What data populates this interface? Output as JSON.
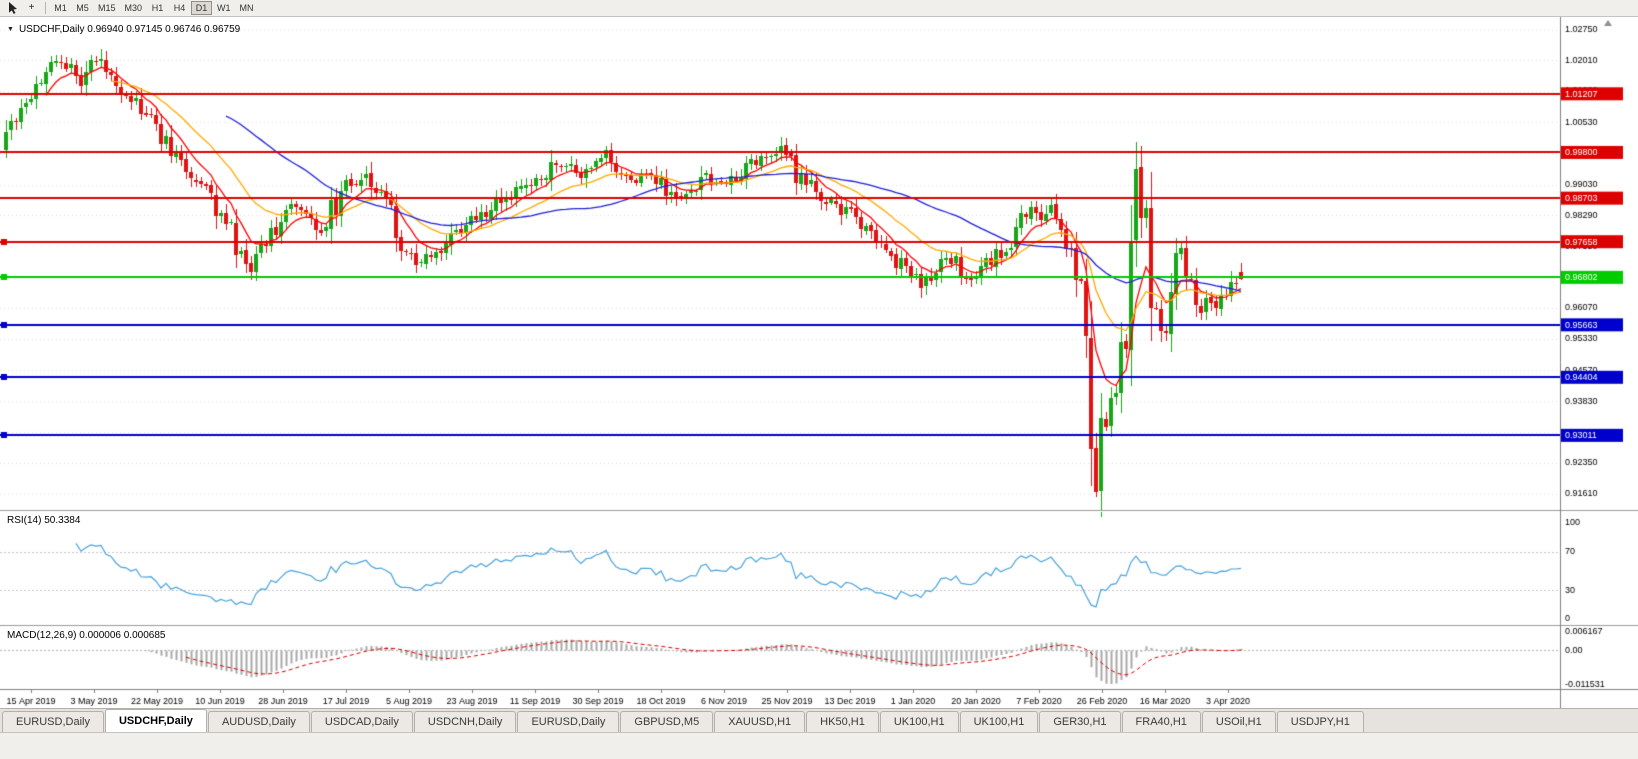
{
  "toolbar": {
    "icons": [
      {
        "name": "cursor-icon"
      },
      {
        "name": "crosshair-icon",
        "glyph": "+"
      }
    ],
    "timeframes": [
      "M1",
      "M5",
      "M15",
      "M30",
      "H1",
      "H4",
      "D1",
      "W1",
      "MN"
    ],
    "active_timeframe": "D1"
  },
  "chart": {
    "title": "USDCHF,Daily 0.96940 0.97145 0.96746 0.96759",
    "symbol": "USDCHF,Daily",
    "ohlc": {
      "open": "0.96940",
      "high": "0.97145",
      "low": "0.96746",
      "close": "0.96759"
    }
  },
  "chart_data": {
    "type": "candlestick",
    "symbol": "USDCHF",
    "period": "Daily",
    "price_range": {
      "top": 1.0305,
      "bottom": 0.9122
    },
    "y_axis_ticks": [
      "1.02750",
      "1.02010",
      "1.01280",
      "1.00530",
      "0.99780",
      "0.99030",
      "0.98290",
      "0.97550",
      "0.96810",
      "0.96070",
      "0.95330",
      "0.94570",
      "0.93830",
      "0.93090",
      "0.92350",
      "0.91610"
    ],
    "x_labels": [
      "15 Apr 2019",
      "3 May 2019",
      "22 May 2019",
      "10 Jun 2019",
      "28 Jun 2019",
      "17 Jul 2019",
      "5 Aug 2019",
      "23 Aug 2019",
      "11 Sep 2019",
      "30 Sep 2019",
      "18 Oct 2019",
      "6 Nov 2019",
      "25 Nov 2019",
      "13 Dec 2019",
      "1 Jan 2020",
      "20 Jan 2020",
      "7 Feb 2020",
      "26 Feb 2020",
      "16 Mar 2020",
      "3 Apr 2020"
    ],
    "price_lines": [
      {
        "label": "1.01207",
        "value": 1.01207,
        "color": "#dd0000",
        "handle": false
      },
      {
        "label": "0.99800",
        "value": 0.998,
        "color": "#dd0000",
        "handle": false
      },
      {
        "label": "0.98703",
        "value": 0.98703,
        "color": "#dd0000",
        "handle": false
      },
      {
        "label": "0.97658",
        "value": 0.97658,
        "color": "#dd0000",
        "handle": true
      },
      {
        "label": "0.96802",
        "value": 0.96802,
        "color": "#00cc00",
        "handle": true
      },
      {
        "label": "0.95663",
        "value": 0.95663,
        "color": "#0000cc",
        "handle": true
      },
      {
        "label": "0.94404",
        "value": 0.94404,
        "color": "#0000cc",
        "handle": true
      },
      {
        "label": "0.93011",
        "value": 0.93011,
        "color": "#0000cc",
        "handle": true
      }
    ],
    "candle_count": 248,
    "last_candle": {
      "o": 0.9694,
      "h": 0.97145,
      "l": 0.96746,
      "c": 0.96759
    },
    "extremes": {
      "high": 1.0228,
      "low": 0.9152,
      "rebound_high": 0.9932
    },
    "price_anchors": [
      [
        0,
        1.003
      ],
      [
        3,
        1.009
      ],
      [
        6,
        1.015
      ],
      [
        9,
        1.0208
      ],
      [
        12,
        1.0185
      ],
      [
        15,
        1.015
      ],
      [
        17,
        1.0205
      ],
      [
        20,
        1.018
      ],
      [
        23,
        1.014
      ],
      [
        26,
        1.0095
      ],
      [
        30,
        1.004
      ],
      [
        33,
        0.9985
      ],
      [
        36,
        0.994
      ],
      [
        39,
        0.99
      ],
      [
        42,
        0.9855
      ],
      [
        45,
        0.978
      ],
      [
        47,
        0.9715
      ],
      [
        49,
        0.97
      ],
      [
        51,
        0.9755
      ],
      [
        54,
        0.981
      ],
      [
        57,
        0.985
      ],
      [
        60,
        0.982
      ],
      [
        63,
        0.9795
      ],
      [
        66,
        0.986
      ],
      [
        69,
        0.9905
      ],
      [
        72,
        0.9925
      ],
      [
        75,
        0.989
      ],
      [
        78,
        0.98
      ],
      [
        80,
        0.9745
      ],
      [
        82,
        0.9705
      ],
      [
        85,
        0.973
      ],
      [
        88,
        0.976
      ],
      [
        91,
        0.9795
      ],
      [
        94,
        0.982
      ],
      [
        97,
        0.9845
      ],
      [
        100,
        0.987
      ],
      [
        103,
        0.989
      ],
      [
        106,
        0.991
      ],
      [
        109,
        0.994
      ],
      [
        112,
        0.9955
      ],
      [
        115,
        0.992
      ],
      [
        118,
        0.995
      ],
      [
        120,
        0.998
      ],
      [
        122,
        0.994
      ],
      [
        125,
        0.9905
      ],
      [
        128,
        0.9935
      ],
      [
        131,
        0.99
      ],
      [
        134,
        0.9865
      ],
      [
        137,
        0.989
      ],
      [
        140,
        0.9925
      ],
      [
        143,
        0.99
      ],
      [
        146,
        0.993
      ],
      [
        149,
        0.9955
      ],
      [
        152,
        0.9975
      ],
      [
        155,
        0.9985
      ],
      [
        157,
        0.995
      ],
      [
        159,
        0.991
      ],
      [
        162,
        0.988
      ],
      [
        165,
        0.9855
      ],
      [
        168,
        0.984
      ],
      [
        171,
        0.981
      ],
      [
        174,
        0.9775
      ],
      [
        177,
        0.9735
      ],
      [
        180,
        0.97
      ],
      [
        183,
        0.9665
      ],
      [
        186,
        0.969
      ],
      [
        189,
        0.9725
      ],
      [
        191,
        0.9695
      ],
      [
        193,
        0.967
      ],
      [
        195,
        0.97
      ],
      [
        197,
        0.972
      ],
      [
        199,
        0.9745
      ],
      [
        201,
        0.9775
      ],
      [
        203,
        0.981
      ],
      [
        205,
        0.984
      ],
      [
        207,
        0.9825
      ],
      [
        209,
        0.9845
      ],
      [
        211,
        0.981
      ],
      [
        213,
        0.975
      ],
      [
        214,
        0.97
      ],
      [
        215,
        0.963
      ],
      [
        216,
        0.952
      ],
      [
        217,
        0.928
      ],
      [
        218,
        0.922
      ],
      [
        219,
        0.935
      ],
      [
        220,
        0.93
      ],
      [
        221,
        0.942
      ],
      [
        222,
        0.939
      ],
      [
        223,
        0.948
      ],
      [
        224,
        0.961
      ],
      [
        225,
        0.975
      ],
      [
        226,
        0.988
      ],
      [
        227,
        0.985
      ],
      [
        228,
        0.977
      ],
      [
        229,
        0.968
      ],
      [
        230,
        0.96
      ],
      [
        231,
        0.953
      ],
      [
        232,
        0.957
      ],
      [
        233,
        0.966
      ],
      [
        234,
        0.9745
      ],
      [
        235,
        0.976
      ],
      [
        236,
        0.97
      ],
      [
        237,
        0.9655
      ],
      [
        238,
        0.962
      ],
      [
        239,
        0.96
      ],
      [
        240,
        0.9645
      ],
      [
        241,
        0.962
      ],
      [
        242,
        0.9598
      ],
      [
        243,
        0.964
      ],
      [
        244,
        0.9615
      ],
      [
        245,
        0.965
      ],
      [
        246,
        0.9685
      ],
      [
        247,
        0.9676
      ]
    ],
    "colors": {
      "up": "#18a518",
      "down": "#e01313",
      "grid": "#e4e4e4",
      "axis_text": "#000000",
      "badge_text": "#ffffff"
    },
    "moving_averages": [
      {
        "name": "fast",
        "type": "ema",
        "period": 8,
        "color": "#ff0000"
      },
      {
        "name": "mid",
        "type": "ema",
        "period": 21,
        "color": "#ffaa00"
      },
      {
        "name": "slow",
        "type": "sma",
        "period": 44,
        "color": "#2020dd"
      }
    ],
    "indicators": {
      "rsi": {
        "title": "RSI(14) 50.3384",
        "name": "RSI",
        "period": 14,
        "value": "50.3384",
        "levels": [
          "100",
          "70",
          "30",
          "0"
        ],
        "level_values": [
          100,
          70,
          30,
          0
        ],
        "color": "#4aa2dc"
      },
      "macd": {
        "title": "MACD(12,26,9) 0.000006 0.000685",
        "name": "MACD",
        "params": "12,26,9",
        "values_text": "0.000006 0.000685",
        "fast": 12,
        "slow": 26,
        "signal": 9,
        "axis_labels": [
          "0.006167",
          "0.00",
          "-0.011531"
        ],
        "axis_values": [
          0.006167,
          0,
          -0.011531
        ],
        "range": {
          "top": 0.0068,
          "bottom": -0.0122
        },
        "histogram_color": "#a9a9a9",
        "signal_color": "#dd0000"
      }
    }
  },
  "tabs": {
    "items": [
      {
        "label": "EURUSD,Daily",
        "active": false
      },
      {
        "label": "USDCHF,Daily",
        "active": true
      },
      {
        "label": "AUDUSD,Daily",
        "active": false
      },
      {
        "label": "USDCAD,Daily",
        "active": false
      },
      {
        "label": "USDCNH,Daily",
        "active": false
      },
      {
        "label": "EURUSD,Daily",
        "active": false
      },
      {
        "label": "GBPUSD,M5",
        "active": false
      },
      {
        "label": "XAUUSD,H1",
        "active": false
      },
      {
        "label": "HK50,H1",
        "active": false
      },
      {
        "label": "UK100,H1",
        "active": false
      },
      {
        "label": "UK100,H1",
        "active": false
      },
      {
        "label": "GER30,H1",
        "active": false
      },
      {
        "label": "FRA40,H1",
        "active": false
      },
      {
        "label": "USOil,H1",
        "active": false
      },
      {
        "label": "USDJPY,H1",
        "active": false
      }
    ]
  }
}
